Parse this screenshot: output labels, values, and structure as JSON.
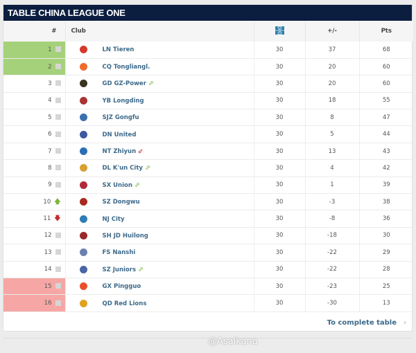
{
  "title": "TABLE CHINA LEAGUE ONE",
  "headers": {
    "rank": "#",
    "club": "Club",
    "games_icon": "football-pitch-icon",
    "diff": "+/-",
    "pts": "Pts"
  },
  "colors": {
    "header": "#0b1e40",
    "promotion": "#a5d17a",
    "relegation": "#f6a7a5",
    "link": "#3d6a8a",
    "up": "#7cb342",
    "down": "#c4282e"
  },
  "rows": [
    {
      "rank": "1",
      "zone": "green",
      "trend": "none",
      "badge": "#d33a2c",
      "name": "LN Tieren",
      "move": "",
      "games": "30",
      "diff": "37",
      "pts": "68"
    },
    {
      "rank": "2",
      "zone": "green",
      "trend": "none",
      "badge": "#f06a2a",
      "name": "CQ Tongliangl.",
      "move": "",
      "games": "30",
      "diff": "20",
      "pts": "60"
    },
    {
      "rank": "3",
      "zone": "",
      "trend": "none",
      "badge": "#3a3320",
      "name": "GD GZ-Power",
      "move": "up",
      "games": "30",
      "diff": "20",
      "pts": "60"
    },
    {
      "rank": "4",
      "zone": "",
      "trend": "none",
      "badge": "#a33",
      "name": "YB Longding",
      "move": "",
      "games": "30",
      "diff": "18",
      "pts": "55"
    },
    {
      "rank": "5",
      "zone": "",
      "trend": "none",
      "badge": "#3a6fb0",
      "name": "SJZ Gongfu",
      "move": "",
      "games": "30",
      "diff": "8",
      "pts": "47"
    },
    {
      "rank": "6",
      "zone": "",
      "trend": "none",
      "badge": "#3c5aa0",
      "name": "DN United",
      "move": "",
      "games": "30",
      "diff": "5",
      "pts": "44"
    },
    {
      "rank": "7",
      "zone": "",
      "trend": "none",
      "badge": "#2a6fb5",
      "name": "NT Zhiyun",
      "move": "down",
      "games": "30",
      "diff": "13",
      "pts": "43"
    },
    {
      "rank": "8",
      "zone": "",
      "trend": "none",
      "badge": "#d8a030",
      "name": "DL K'un City",
      "move": "up",
      "games": "30",
      "diff": "4",
      "pts": "42"
    },
    {
      "rank": "9",
      "zone": "",
      "trend": "none",
      "badge": "#b02a3a",
      "name": "SX Union",
      "move": "up",
      "games": "30",
      "diff": "1",
      "pts": "39"
    },
    {
      "rank": "10",
      "zone": "",
      "trend": "up",
      "badge": "#a82a20",
      "name": "SZ Dongwu",
      "move": "",
      "games": "30",
      "diff": "-3",
      "pts": "38"
    },
    {
      "rank": "11",
      "zone": "",
      "trend": "down",
      "badge": "#2f7db5",
      "name": "NJ City",
      "move": "",
      "games": "30",
      "diff": "-8",
      "pts": "36"
    },
    {
      "rank": "12",
      "zone": "",
      "trend": "none",
      "badge": "#9a2a2a",
      "name": "SH JD Huilong",
      "move": "",
      "games": "30",
      "diff": "-18",
      "pts": "30"
    },
    {
      "rank": "13",
      "zone": "",
      "trend": "none",
      "badge": "#6a80b0",
      "name": "FS Nanshi",
      "move": "",
      "games": "30",
      "diff": "-22",
      "pts": "29"
    },
    {
      "rank": "14",
      "zone": "",
      "trend": "none",
      "badge": "#4a64a8",
      "name": "SZ Juniors",
      "move": "up",
      "games": "30",
      "diff": "-22",
      "pts": "28"
    },
    {
      "rank": "15",
      "zone": "red",
      "trend": "none",
      "badge": "#e8502a",
      "name": "GX Pingguo",
      "move": "",
      "games": "30",
      "diff": "-23",
      "pts": "25"
    },
    {
      "rank": "16",
      "zone": "red",
      "trend": "none",
      "badge": "#e0a020",
      "name": "QD Red Lions",
      "move": "",
      "games": "30",
      "diff": "-30",
      "pts": "13"
    }
  ],
  "footer": {
    "link": "To complete table",
    "chevron": "chevron-right-icon"
  },
  "watermark": "@Asaikana"
}
